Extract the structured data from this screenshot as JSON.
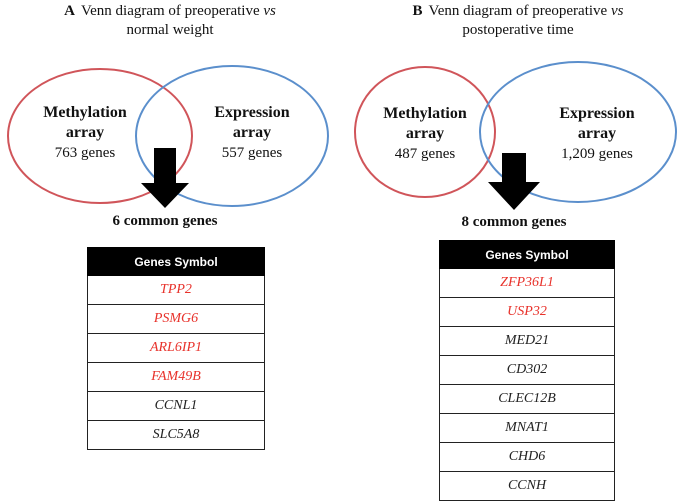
{
  "panel_a": {
    "letter": "A",
    "title_part1": "Venn diagram of preoperative ",
    "title_vs": "vs",
    "title_part2": "normal weight",
    "left_set": {
      "name_line1": "Methylation",
      "name_line2": "array",
      "count": "763 genes",
      "color": "#d0555a"
    },
    "right_set": {
      "name_line1": "Expression",
      "name_line2": "array",
      "count": "557 genes",
      "color": "#5b8fcc"
    },
    "common_label": "6 common genes",
    "table_header": "Genes Symbol",
    "genes": [
      {
        "symbol": "TPP2",
        "highlighted": true
      },
      {
        "symbol": "PSMG6",
        "highlighted": true
      },
      {
        "symbol": "ARL6IP1",
        "highlighted": true
      },
      {
        "symbol": "FAM49B",
        "highlighted": true
      },
      {
        "symbol": "CCNL1",
        "highlighted": false
      },
      {
        "symbol": "SLC5A8",
        "highlighted": false
      }
    ]
  },
  "panel_b": {
    "letter": "B",
    "title_part1": "Venn diagram of preoperative ",
    "title_vs": "vs",
    "title_part2": "postoperative time",
    "left_set": {
      "name_line1": "Methylation",
      "name_line2": "array",
      "count": "487 genes",
      "color": "#d0555a"
    },
    "right_set": {
      "name_line1": "Expression",
      "name_line2": "array",
      "count": "1,209 genes",
      "color": "#5b8fcc"
    },
    "common_label": "8 common genes",
    "table_header": "Genes Symbol",
    "genes": [
      {
        "symbol": "ZFP36L1",
        "highlighted": true
      },
      {
        "symbol": "USP32",
        "highlighted": true
      },
      {
        "symbol": "MED21",
        "highlighted": false
      },
      {
        "symbol": "CD302",
        "highlighted": false
      },
      {
        "symbol": "CLEC12B",
        "highlighted": false
      },
      {
        "symbol": "MNAT1",
        "highlighted": false
      },
      {
        "symbol": "CHD6",
        "highlighted": false
      },
      {
        "symbol": "CCNH",
        "highlighted": false
      }
    ]
  },
  "colors": {
    "highlight": "#e8322b",
    "arrow": "#000000",
    "header_bg": "#000000"
  }
}
